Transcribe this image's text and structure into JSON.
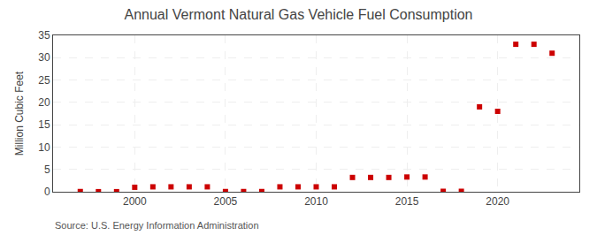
{
  "chart_data": {
    "type": "scatter",
    "title": "Annual Vermont Natural Gas Vehicle Fuel Consumption",
    "ylabel": "Million Cubic Feet",
    "annotations": [
      "Source: U.S. Energy Information Administration"
    ],
    "x": [
      1997,
      1998,
      1999,
      2000,
      2001,
      2002,
      2003,
      2004,
      2005,
      2006,
      2007,
      2008,
      2009,
      2010,
      2011,
      2012,
      2013,
      2014,
      2015,
      2016,
      2017,
      2018,
      2019,
      2020,
      2021,
      2022,
      2023
    ],
    "values": [
      0.05,
      0.02,
      0.02,
      1.0,
      1.1,
      1.1,
      1.1,
      1.1,
      0.05,
      0.05,
      0.05,
      1.1,
      1.1,
      1.1,
      1.1,
      3.2,
      3.2,
      3.2,
      3.3,
      3.3,
      0.1,
      0.1,
      19.0,
      18.0,
      33.0,
      33.0,
      31.0
    ],
    "color": "#cc0000",
    "marker": "square",
    "xlim": [
      1995.5,
      2024.5
    ],
    "xticks": [
      2000,
      2005,
      2010,
      2015,
      2020
    ],
    "ylim": [
      0,
      35
    ],
    "yticks": [
      0,
      5,
      10,
      15,
      20,
      25,
      30,
      35
    ],
    "grid": true
  }
}
